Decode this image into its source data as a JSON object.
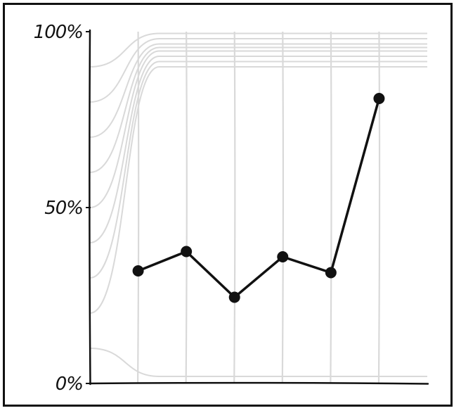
{
  "chart_data": {
    "type": "line",
    "title": "",
    "xlabel": "",
    "ylabel": "",
    "ylim": [
      0,
      100
    ],
    "y_ticks": [
      {
        "value": 0,
        "label": "0%"
      },
      {
        "value": 50,
        "label": "50%"
      },
      {
        "value": 100,
        "label": "100%"
      }
    ],
    "x": [
      1,
      2,
      3,
      4,
      5,
      6
    ],
    "series": [
      {
        "values": [
          32,
          37.5,
          24.5,
          36,
          31.5,
          81
        ],
        "color": "#111111"
      }
    ],
    "background_curves": {
      "color": "#d9d9d9",
      "start_values": [
        10,
        20,
        30,
        40,
        50,
        60,
        70,
        80,
        90
      ],
      "end_values": [
        2,
        90,
        91.5,
        93,
        94.5,
        95.5,
        96.5,
        98,
        99.5
      ]
    },
    "grid": {
      "vertical": true,
      "horizontal": false,
      "color": "#d9d9d9"
    }
  }
}
